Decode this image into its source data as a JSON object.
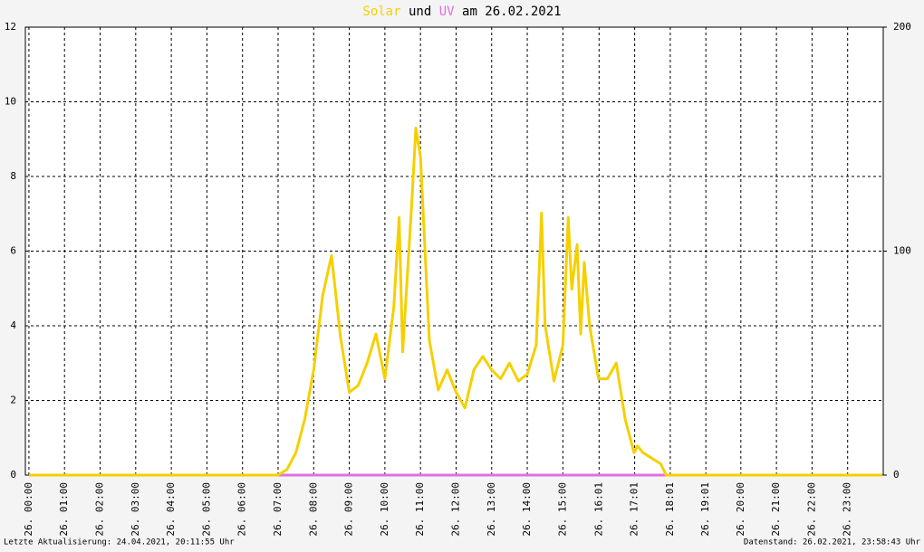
{
  "chart_data": {
    "type": "line",
    "title_parts": [
      "und",
      "am 26.02.2021"
    ],
    "footer_left": "Letzte Aktualisierung: 24.04.2021, 20:11:55 Uhr",
    "footer_right": "Datenstand: 26.02.2021, 23:58:43 Uhr",
    "xlim": [
      -0.1,
      24
    ],
    "xticks": [
      {
        "value": 0,
        "label": "26. 00:00"
      },
      {
        "value": 1,
        "label": "26. 01:00"
      },
      {
        "value": 2,
        "label": "26. 02:00"
      },
      {
        "value": 3,
        "label": "26. 03:00"
      },
      {
        "value": 4,
        "label": "26. 04:00"
      },
      {
        "value": 5,
        "label": "26. 05:00"
      },
      {
        "value": 6,
        "label": "26. 06:00"
      },
      {
        "value": 7,
        "label": "26. 07:00"
      },
      {
        "value": 8,
        "label": "26. 08:00"
      },
      {
        "value": 9,
        "label": "26. 09:00"
      },
      {
        "value": 10,
        "label": "26. 10:00"
      },
      {
        "value": 11,
        "label": "26. 11:00"
      },
      {
        "value": 12,
        "label": "26. 12:00"
      },
      {
        "value": 13,
        "label": "26. 13:00"
      },
      {
        "value": 14,
        "label": "26. 14:00"
      },
      {
        "value": 15,
        "label": "26. 15:00"
      },
      {
        "value": 16.017,
        "label": "26. 16:01"
      },
      {
        "value": 17.017,
        "label": "26. 17:01"
      },
      {
        "value": 18.017,
        "label": "26. 18:01"
      },
      {
        "value": 19.017,
        "label": "26. 19:01"
      },
      {
        "value": 20,
        "label": "26. 20:00"
      },
      {
        "value": 21,
        "label": "26. 21:00"
      },
      {
        "value": 22,
        "label": "26. 22:00"
      },
      {
        "value": 23,
        "label": "26. 23:00"
      }
    ],
    "ylim": [
      0,
      12
    ],
    "yticks": [
      0,
      2,
      4,
      6,
      8,
      10,
      12
    ],
    "y2lim": [
      0,
      200
    ],
    "y2ticks": [
      0,
      100,
      200
    ],
    "grid": true,
    "series": [
      {
        "name": "Solar",
        "color": "#f5d000",
        "axis": "y2",
        "x": [
          0,
          6.75,
          7,
          7.25,
          7.5,
          7.75,
          8,
          8.25,
          8.5,
          8.75,
          9,
          9.25,
          9.5,
          9.75,
          10,
          10.25,
          10.4,
          10.5,
          10.75,
          10.87,
          11,
          11.25,
          11.5,
          11.75,
          12,
          12.25,
          12.5,
          12.75,
          13,
          13.25,
          13.5,
          13.75,
          14,
          14.25,
          14.4,
          14.5,
          14.75,
          15,
          15.15,
          15.25,
          15.4,
          15.5,
          15.6,
          15.75,
          16,
          16.25,
          16.5,
          16.75,
          17,
          17.1,
          17.25,
          17.5,
          17.75,
          17.9,
          18.25,
          23.98
        ],
        "values": [
          0,
          0,
          0,
          2.5,
          10,
          25,
          47,
          80,
          98,
          62,
          37,
          40,
          50,
          63,
          43,
          75,
          115,
          55,
          120,
          155,
          142,
          60,
          38,
          47,
          37,
          30,
          47,
          53,
          47,
          43,
          50,
          42,
          45,
          58,
          117,
          67,
          42,
          58,
          115,
          83,
          103,
          63,
          95,
          67,
          43,
          43,
          50,
          25,
          10,
          13,
          10,
          7.5,
          5,
          0,
          0,
          0
        ]
      },
      {
        "name": "UV",
        "color": "#e070e0",
        "x": [
          0,
          23.98
        ],
        "values": [
          0,
          0
        ]
      }
    ]
  }
}
